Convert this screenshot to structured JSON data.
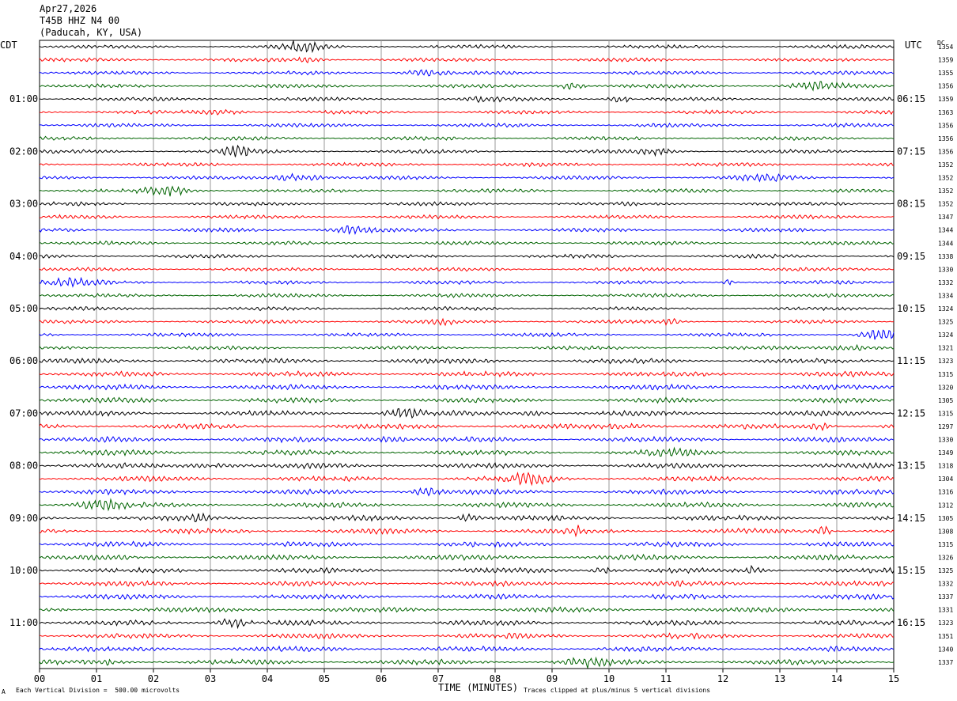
{
  "header": {
    "date": "Apr27,2026",
    "station": "T45B HHZ N4 00",
    "location": "(Paducah, KY, USA)"
  },
  "left_timezone": "CDT",
  "right_timezone": "UTC",
  "dc_label": "DC",
  "footer": {
    "scale_note": "Each Vertical Division =  500.00 microvolts",
    "xlabel": "TIME (MINUTES)",
    "clip_note": "Traces clipped at plus/minus 5 vertical divisions",
    "corner_mark": "A"
  },
  "chart_data": {
    "type": "line",
    "title": "T45B HHZ N4 00",
    "xlabel": "TIME (MINUTES)",
    "xlim": [
      0,
      15
    ],
    "x_ticks": [
      "00",
      "01",
      "02",
      "03",
      "04",
      "05",
      "06",
      "07",
      "08",
      "09",
      "10",
      "11",
      "12",
      "13",
      "14",
      "15"
    ],
    "trace_colors": [
      "#000000",
      "#ff0000",
      "#0000ff",
      "#006400"
    ],
    "trace_count": 48,
    "hour_labels_cdt": [
      "01:00",
      "02:00",
      "03:00",
      "04:00",
      "05:00",
      "06:00",
      "07:00",
      "08:00",
      "09:00",
      "10:00",
      "11:00"
    ],
    "hour_labels_utc": [
      "06:15",
      "07:15",
      "08:15",
      "09:15",
      "10:15",
      "11:15",
      "12:15",
      "13:15",
      "14:15",
      "15:15",
      "16:15"
    ],
    "dc_offsets": [
      1354,
      1359,
      1355,
      1356,
      1359,
      1363,
      1356,
      1356,
      1356,
      1352,
      1352,
      1352,
      1352,
      1347,
      1344,
      1344,
      1338,
      1330,
      1332,
      1334,
      1324,
      1325,
      1324,
      1321,
      1323,
      1315,
      1320,
      1305,
      1315,
      1297,
      1330,
      1349,
      1318,
      1304,
      1316,
      1312,
      1305,
      1308,
      1315,
      1326,
      1325,
      1332,
      1337,
      1331,
      1323,
      1351,
      1340,
      1337
    ]
  }
}
